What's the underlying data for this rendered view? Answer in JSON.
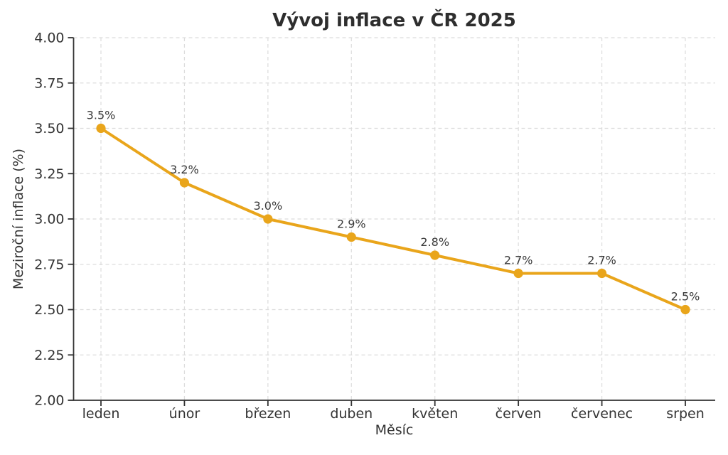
{
  "chart_data": {
    "type": "line",
    "title": "Vývoj inflace v ČR 2025",
    "xlabel": "Měsíc",
    "ylabel": "Meziroční inflace (%)",
    "categories": [
      "leden",
      "únor",
      "březen",
      "duben",
      "květen",
      "červen",
      "červenec",
      "srpen"
    ],
    "series": [
      {
        "name": "Meziroční inflace",
        "values": [
          3.5,
          3.2,
          3.0,
          2.9,
          2.8,
          2.7,
          2.7,
          2.5
        ]
      }
    ],
    "point_labels": [
      "3.5%",
      "3.2%",
      "3.0%",
      "2.9%",
      "2.8%",
      "2.7%",
      "2.7%",
      "2.5%"
    ],
    "ylim": [
      2.0,
      4.0
    ],
    "yticks": [
      2.0,
      2.25,
      2.5,
      2.75,
      3.0,
      3.25,
      3.5,
      3.75,
      4.0
    ],
    "ytick_labels": [
      "2.00",
      "2.25",
      "2.50",
      "2.75",
      "3.00",
      "3.25",
      "3.50",
      "3.75",
      "4.00"
    ],
    "grid": true,
    "grid_style": "dashed",
    "legend": false,
    "colors": {
      "line": "#E9A51B",
      "marker": "#E9A51B",
      "grid": "#DCDCDC",
      "axis": "#333333",
      "tick_text": "#333333",
      "point_label_text": "#3A3A3A",
      "title": "#2E2E2E",
      "background": "#FFFFFF"
    }
  }
}
